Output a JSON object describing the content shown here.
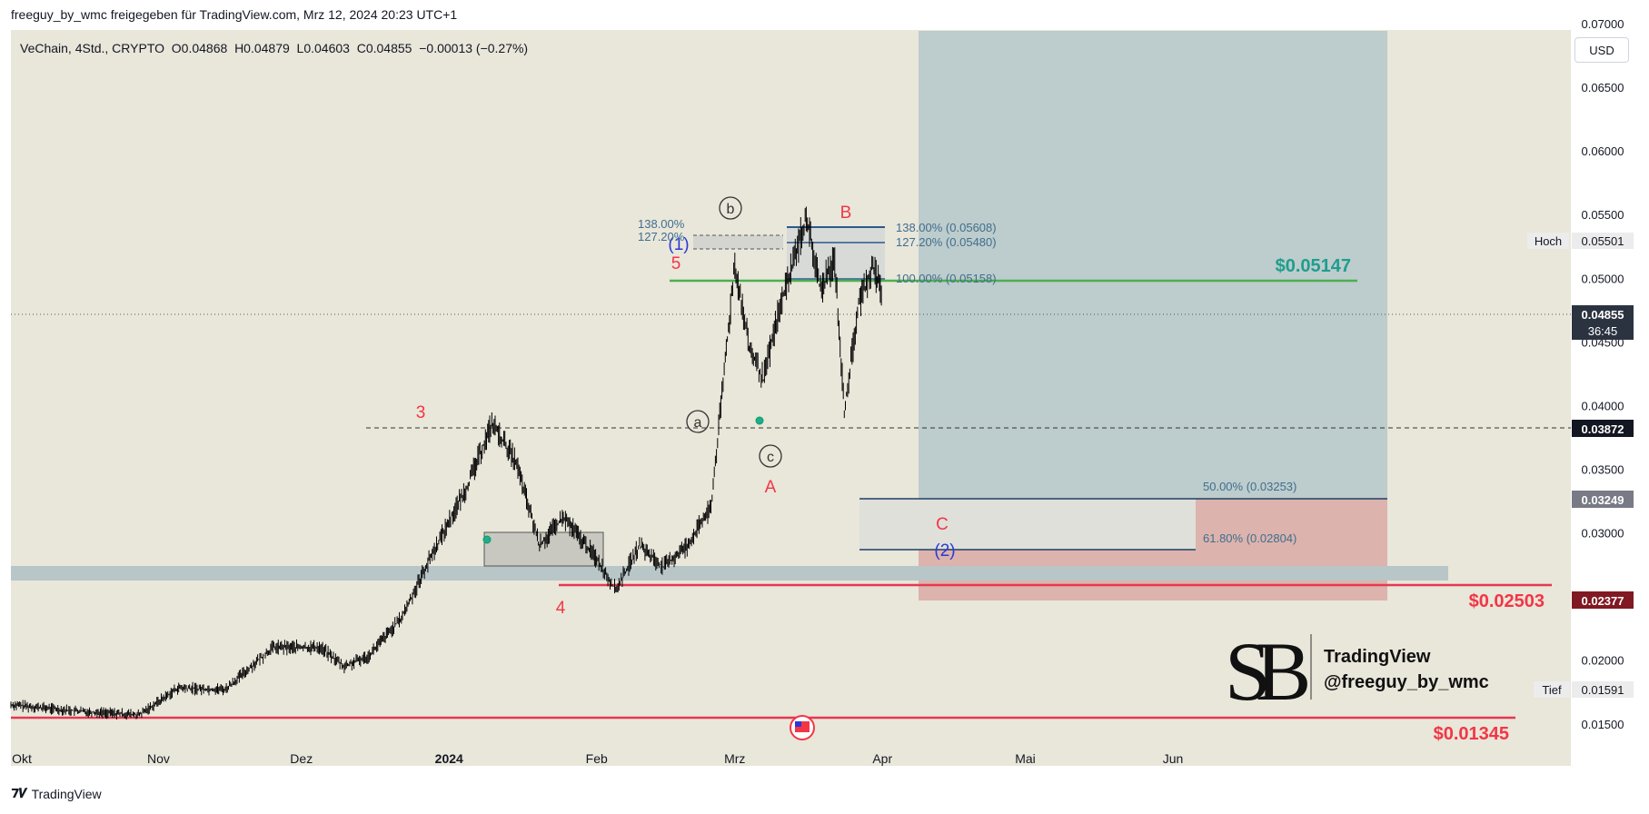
{
  "header": {
    "publish_line": "freeguy_by_wmc freigegeben für TradingView.com, Mrz 12, 2024 20:23 UTC+1"
  },
  "legend": {
    "symbol_line": "VeChain, 4Std., CRYPTO  O0.04868  H0.04879  L0.04603  C0.04855  −0.00013 (−0.27%)"
  },
  "currency_button": "USD",
  "footer": {
    "brand": "TradingView"
  },
  "watermark": {
    "title": "TradingView",
    "handle": "@freeguy_by_wmc"
  },
  "colors": {
    "background": "#e9e6da",
    "candle": "#000000",
    "target_zone": "#b5c7c9",
    "stop_zone": "#d9a9a4",
    "support_band": "#b8c6c8",
    "green_line": "#4caf50",
    "red_line": "#e53950",
    "wave_red": "#f23645",
    "wave_blue": "#2a3ad6",
    "fib_text": "#3f6e8e"
  },
  "price_labels": {
    "hoch_label": "Hoch",
    "hoch_value": "0.05501",
    "current": "0.04855",
    "countdown": "36:45",
    "line_0387": "0.03872",
    "line_0325": "0.03249",
    "line_0238": "0.02377",
    "tief_label": "Tief",
    "tief_value": "0.01591"
  },
  "annotations": {
    "green_target": "$0.05147",
    "red_level_1": "$0.02503",
    "red_level_2": "$0.01345",
    "fib_138_right": "138.00% (0.05608)",
    "fib_127_right": "127.20% (0.05480)",
    "fib_100_right": "100.00% (0.05158)",
    "fib_138_left": "138.00%",
    "fib_127_left": "127.20%",
    "fib_50": "50.00% (0.03253)",
    "fib_618": "61.80% (0.02804)",
    "wave_3": "3",
    "wave_4": "4",
    "wave_5": "5",
    "wave_1_blue": "(1)",
    "wave_2_blue": "(2)",
    "wave_a_circle": "a",
    "wave_b_circle": "b",
    "wave_c_circle": "c",
    "wave_A": "A",
    "wave_B": "B",
    "wave_C": "C"
  },
  "chart_data": {
    "type": "candlestick",
    "title": "VeChain, 4Std., CRYPTO",
    "y_axis": {
      "ticks": [
        "0.07000",
        "0.06500",
        "0.06000",
        "0.05500",
        "0.05000",
        "0.04500",
        "0.04000",
        "0.03500",
        "0.03000",
        "0.02500",
        "0.02000",
        "0.01500"
      ],
      "ylim": [
        0.0117,
        0.0695
      ]
    },
    "x_axis": {
      "ticks": [
        "Okt",
        "Nov",
        "Dez",
        "2024",
        "Feb",
        "Mrz",
        "Apr",
        "Mai",
        "Jun"
      ]
    },
    "price_path": [
      [
        "2023-10-01",
        0.0165
      ],
      [
        "2023-10-15",
        0.016
      ],
      [
        "2023-10-28",
        0.0157
      ],
      [
        "2023-11-05",
        0.0178
      ],
      [
        "2023-11-15",
        0.0177
      ],
      [
        "2023-11-25",
        0.021
      ],
      [
        "2023-12-05",
        0.021
      ],
      [
        "2023-12-10",
        0.0195
      ],
      [
        "2023-12-15",
        0.0203
      ],
      [
        "2023-12-22",
        0.0233
      ],
      [
        "2023-12-28",
        0.028
      ],
      [
        "2024-01-05",
        0.0338
      ],
      [
        "2024-01-10",
        0.0386
      ],
      [
        "2024-01-15",
        0.0356
      ],
      [
        "2024-01-20",
        0.029
      ],
      [
        "2024-01-25",
        0.0312
      ],
      [
        "2024-02-01",
        0.028
      ],
      [
        "2024-02-05",
        0.0255
      ],
      [
        "2024-02-10",
        0.029
      ],
      [
        "2024-02-15",
        0.0273
      ],
      [
        "2024-02-20",
        0.029
      ],
      [
        "2024-02-25",
        0.032
      ],
      [
        "2024-02-28",
        0.0435
      ],
      [
        "2024-03-01",
        0.0512
      ],
      [
        "2024-03-04",
        0.0445
      ],
      [
        "2024-03-07",
        0.042
      ],
      [
        "2024-03-10",
        0.047
      ],
      [
        "2024-03-13",
        0.051
      ],
      [
        "2024-03-16",
        0.0548
      ],
      [
        "2024-03-19",
        0.049
      ],
      [
        "2024-03-22",
        0.0515
      ],
      [
        "2024-03-24",
        0.0395
      ],
      [
        "2024-03-27",
        0.048
      ],
      [
        "2024-03-30",
        0.051
      ],
      [
        "2024-04-01",
        0.0486
      ]
    ],
    "levels": [
      {
        "label": "$0.05147",
        "value": 0.05147
      },
      {
        "label": "$0.02503",
        "value": 0.02503
      },
      {
        "label": "$0.01345",
        "value": 0.01345
      },
      {
        "label": "0.03872",
        "value": 0.03872
      }
    ],
    "fibonacci": [
      {
        "label": "138.00%",
        "value": 0.05608
      },
      {
        "label": "127.20%",
        "value": 0.0548
      },
      {
        "label": "100.00%",
        "value": 0.05158
      },
      {
        "label": "50.00%",
        "value": 0.03253
      },
      {
        "label": "61.80%",
        "value": 0.02804
      }
    ]
  }
}
